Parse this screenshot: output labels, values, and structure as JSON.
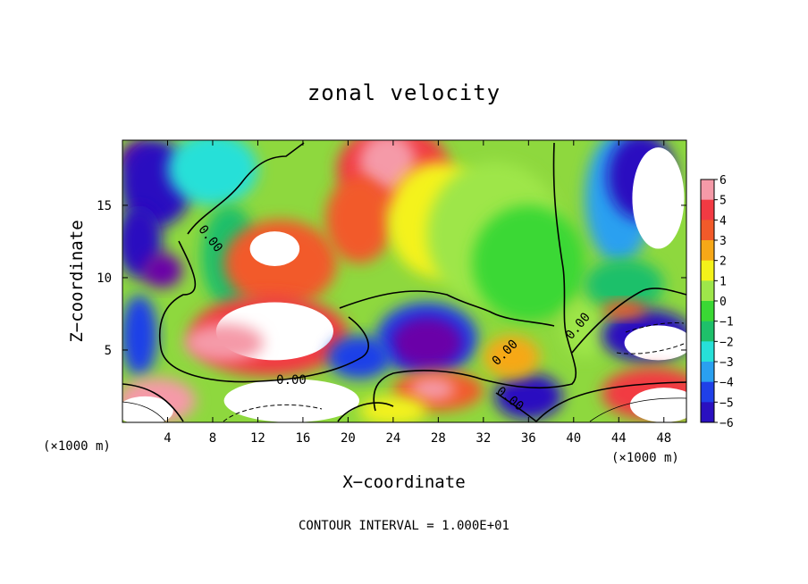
{
  "chart_data": {
    "type": "heatmap",
    "title": "zonal velocity",
    "xlabel": "X−coordinate",
    "ylabel": "Z−coordinate",
    "x_unit_label": "(×1000 m)",
    "x_unit_label_right": "(×1000 m)",
    "x_ticks": [
      "4",
      "8",
      "12",
      "16",
      "20",
      "24",
      "28",
      "32",
      "36",
      "40",
      "44",
      "48"
    ],
    "x_tick_values": [
      4,
      8,
      12,
      16,
      20,
      24,
      28,
      32,
      36,
      40,
      44,
      48
    ],
    "y_ticks": [
      "5",
      "10",
      "15"
    ],
    "y_tick_values": [
      5,
      10,
      15
    ],
    "xlim": [
      0,
      50
    ],
    "ylim": [
      0,
      19.5
    ],
    "colorbar": {
      "labels": [
        "6",
        "5",
        "4",
        "3",
        "2",
        "1",
        "0",
        "−1",
        "−2",
        "−3",
        "−4",
        "−5",
        "−6"
      ],
      "levels": [
        6,
        5,
        4,
        3,
        2,
        1,
        0,
        -1,
        -2,
        -3,
        -4,
        -5,
        -6
      ],
      "colors": [
        "#f59aa8",
        "#f23a43",
        "#f25a2a",
        "#f6a818",
        "#f4f21a",
        "#9ee64a",
        "#3ad834",
        "#1ec06a",
        "#27e0d8",
        "#2aa0f0",
        "#1f40e8",
        "#2a10c0",
        "#6a00a8"
      ],
      "over_color": "#ffffff"
    },
    "contour_labels": [
      "0.00",
      "0.00",
      "0.00",
      "0.00",
      "0.00"
    ],
    "contour_interval_text": "CONTOUR INTERVAL = 1.000E+01",
    "regions": [
      {
        "x": 1.5,
        "z": 18.2,
        "rx": 1.6,
        "rz": 1.2,
        "v": -6
      },
      {
        "x": 3.0,
        "z": 16.5,
        "rx": 3.2,
        "rz": 3.0,
        "v": -5
      },
      {
        "x": 1.5,
        "z": 6.0,
        "rx": 1.6,
        "rz": 2.8,
        "v": -4
      },
      {
        "x": 1.5,
        "z": 12.5,
        "rx": 2.0,
        "rz": 2.5,
        "v": -5
      },
      {
        "x": 3.5,
        "z": 10.5,
        "rx": 1.8,
        "rz": 1.2,
        "v": -6
      },
      {
        "x": 8.0,
        "z": 17.5,
        "rx": 4.0,
        "rz": 2.5,
        "v": -2
      },
      {
        "x": 9.5,
        "z": 11.5,
        "rx": 2.5,
        "rz": 3.5,
        "v": -1
      },
      {
        "x": 14.0,
        "z": 11.0,
        "rx": 5.0,
        "rz": 3.0,
        "v": 4
      },
      {
        "x": 13.5,
        "z": 12.0,
        "rx": 2.2,
        "rz": 1.2,
        "v": 7
      },
      {
        "x": 13.0,
        "z": 6.0,
        "rx": 7.0,
        "rz": 2.8,
        "v": 5
      },
      {
        "x": 13.5,
        "z": 6.3,
        "rx": 5.2,
        "rz": 2.0,
        "v": 7
      },
      {
        "x": 9.0,
        "z": 5.5,
        "rx": 3.5,
        "rz": 1.3,
        "v": 6
      },
      {
        "x": 24.0,
        "z": 17.5,
        "rx": 5.0,
        "rz": 3.0,
        "v": 5
      },
      {
        "x": 23.5,
        "z": 18.0,
        "rx": 2.5,
        "rz": 2.0,
        "v": 6
      },
      {
        "x": 21.0,
        "z": 14.0,
        "rx": 3.0,
        "rz": 3.0,
        "v": 4
      },
      {
        "x": 28.0,
        "z": 14.0,
        "rx": 4.5,
        "rz": 4.0,
        "v": 2
      },
      {
        "x": 33.0,
        "z": 13.0,
        "rx": 6.0,
        "rz": 5.0,
        "v": 1
      },
      {
        "x": 36.0,
        "z": 11.0,
        "rx": 5.0,
        "rz": 4.0,
        "v": 0.5
      },
      {
        "x": 27.0,
        "z": 5.8,
        "rx": 4.5,
        "rz": 2.5,
        "v": -4
      },
      {
        "x": 27.0,
        "z": 5.5,
        "rx": 3.2,
        "rz": 1.8,
        "v": -7
      },
      {
        "x": 21.0,
        "z": 4.5,
        "rx": 2.8,
        "rz": 1.5,
        "v": -4
      },
      {
        "x": 28.0,
        "z": 2.2,
        "rx": 4.0,
        "rz": 1.4,
        "v": 4
      },
      {
        "x": 27.5,
        "z": 2.3,
        "rx": 2.0,
        "rz": 0.8,
        "v": 6
      },
      {
        "x": 24.0,
        "z": 0.8,
        "rx": 3.0,
        "rz": 1.0,
        "v": 2
      },
      {
        "x": 15.0,
        "z": 1.5,
        "rx": 6.0,
        "rz": 1.5,
        "v": 7
      },
      {
        "x": 3.0,
        "z": 1.5,
        "rx": 3.5,
        "rz": 1.6,
        "v": 6
      },
      {
        "x": 2.0,
        "z": 0.8,
        "rx": 2.5,
        "rz": 1.0,
        "v": 7
      },
      {
        "x": 36.0,
        "z": 1.8,
        "rx": 3.0,
        "rz": 1.6,
        "v": -5
      },
      {
        "x": 34.5,
        "z": 4.5,
        "rx": 2.5,
        "rz": 1.5,
        "v": 3
      },
      {
        "x": 41.0,
        "z": 6.5,
        "rx": 2.0,
        "rz": 2.0,
        "v": 1
      },
      {
        "x": 44.0,
        "z": 15.5,
        "rx": 3.0,
        "rz": 4.5,
        "v": -3
      },
      {
        "x": 46.0,
        "z": 17.0,
        "rx": 3.0,
        "rz": 3.0,
        "v": -5
      },
      {
        "x": 47.5,
        "z": 15.5,
        "rx": 2.3,
        "rz": 3.5,
        "v": 7
      },
      {
        "x": 44.5,
        "z": 9.5,
        "rx": 3.5,
        "rz": 1.8,
        "v": -1
      },
      {
        "x": 46.5,
        "z": 6.0,
        "rx": 4.0,
        "rz": 1.8,
        "v": -5
      },
      {
        "x": 47.5,
        "z": 5.5,
        "rx": 3.0,
        "rz": 1.2,
        "v": 7
      },
      {
        "x": 47.0,
        "z": 2.0,
        "rx": 4.5,
        "rz": 1.8,
        "v": 5
      },
      {
        "x": 48.0,
        "z": 1.2,
        "rx": 3.0,
        "rz": 1.2,
        "v": 7
      },
      {
        "x": 44.5,
        "z": 7.8,
        "rx": 2.0,
        "rz": 0.6,
        "v": 4
      }
    ]
  }
}
